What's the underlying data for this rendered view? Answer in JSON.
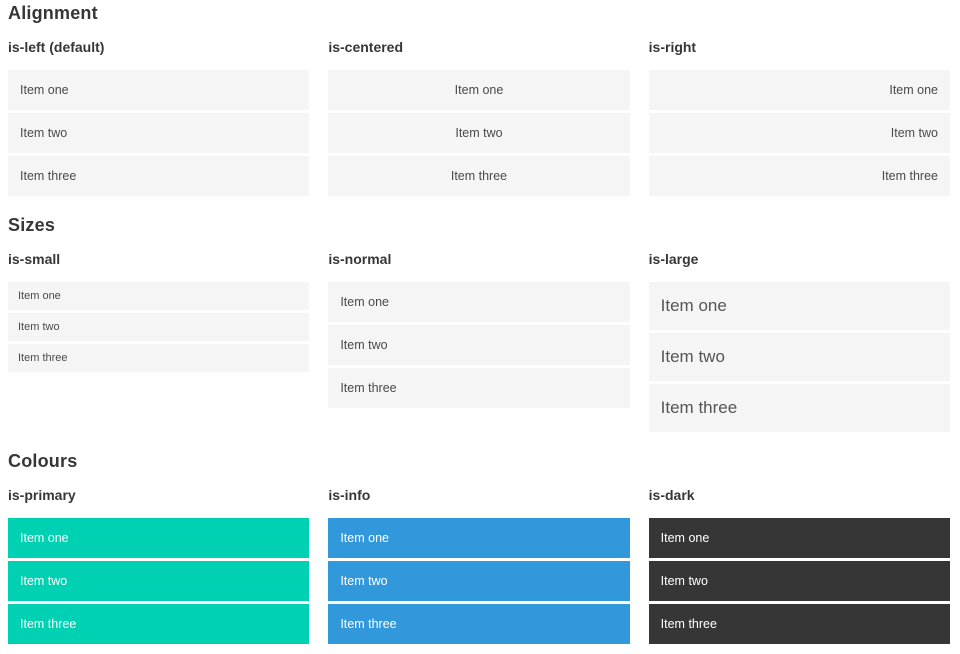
{
  "colors": {
    "page_bg": "#ffffff",
    "heading_text": "#363636",
    "item_bg": "#f5f5f5",
    "item_text": "#4a4a4a",
    "large_item_text": "#555555",
    "item_text_on_color": "#ffffff",
    "primary": "#00d1b2",
    "info": "#3298dc",
    "dark": "#363636"
  },
  "sections": [
    {
      "title": "Alignment",
      "columns": [
        {
          "subtitle": "is-left (default)",
          "items": [
            "Item one",
            "Item two",
            "Item three"
          ]
        },
        {
          "subtitle": "is-centered",
          "items": [
            "Item one",
            "Item two",
            "Item three"
          ]
        },
        {
          "subtitle": "is-right",
          "items": [
            "Item one",
            "Item two",
            "Item three"
          ]
        }
      ]
    },
    {
      "title": "Sizes",
      "columns": [
        {
          "subtitle": "is-small",
          "items": [
            "Item one",
            "Item two",
            "Item three"
          ]
        },
        {
          "subtitle": "is-normal",
          "items": [
            "Item one",
            "Item two",
            "Item three"
          ]
        },
        {
          "subtitle": "is-large",
          "items": [
            "Item one",
            "Item two",
            "Item three"
          ]
        }
      ]
    },
    {
      "title": "Colours",
      "columns": [
        {
          "subtitle": "is-primary",
          "items": [
            "Item one",
            "Item two",
            "Item three"
          ]
        },
        {
          "subtitle": "is-info",
          "items": [
            "Item one",
            "Item two",
            "Item three"
          ]
        },
        {
          "subtitle": "is-dark",
          "items": [
            "Item one",
            "Item two",
            "Item three"
          ]
        }
      ]
    }
  ]
}
